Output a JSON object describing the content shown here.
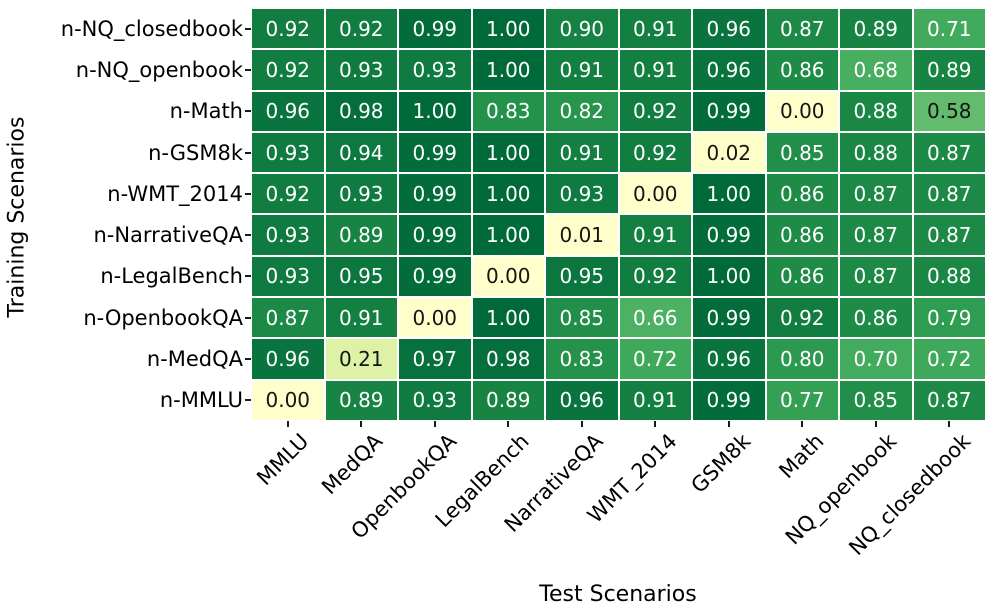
{
  "chart_data": {
    "type": "heatmap",
    "xlabel": "Test Scenarios",
    "ylabel": "Training Scenarios",
    "x_categories": [
      "MMLU",
      "MedQA",
      "OpenbookQA",
      "LegalBench",
      "NarrativeQA",
      "WMT_2014",
      "GSM8k",
      "Math",
      "NQ_openbook",
      "NQ_closedbook"
    ],
    "y_categories": [
      "n-NQ_closedbook",
      "n-NQ_openbook",
      "n-Math",
      "n-GSM8k",
      "n-WMT_2014",
      "n-NarrativeQA",
      "n-LegalBench",
      "n-OpenbookQA",
      "n-MedQA",
      "n-MMLU"
    ],
    "matrix": [
      [
        0.92,
        0.92,
        0.99,
        1.0,
        0.9,
        0.91,
        0.96,
        0.87,
        0.89,
        0.71
      ],
      [
        0.92,
        0.93,
        0.93,
        1.0,
        0.91,
        0.91,
        0.96,
        0.86,
        0.68,
        0.89
      ],
      [
        0.96,
        0.98,
        1.0,
        0.83,
        0.82,
        0.92,
        0.99,
        0.0,
        0.88,
        0.58
      ],
      [
        0.93,
        0.94,
        0.99,
        1.0,
        0.91,
        0.92,
        0.02,
        0.85,
        0.88,
        0.87
      ],
      [
        0.92,
        0.93,
        0.99,
        1.0,
        0.93,
        0.0,
        1.0,
        0.86,
        0.87,
        0.87
      ],
      [
        0.93,
        0.89,
        0.99,
        1.0,
        0.01,
        0.91,
        0.99,
        0.86,
        0.87,
        0.87
      ],
      [
        0.93,
        0.95,
        0.99,
        0.0,
        0.95,
        0.92,
        1.0,
        0.86,
        0.87,
        0.88
      ],
      [
        0.87,
        0.91,
        0.0,
        1.0,
        0.85,
        0.66,
        0.99,
        0.92,
        0.86,
        0.79
      ],
      [
        0.96,
        0.21,
        0.97,
        0.98,
        0.83,
        0.72,
        0.96,
        0.8,
        0.7,
        0.72
      ],
      [
        0.0,
        0.89,
        0.93,
        0.89,
        0.96,
        0.91,
        0.99,
        0.77,
        0.85,
        0.87
      ]
    ],
    "value_format_decimals": 2,
    "vmin": 0,
    "vmax": 1,
    "grid_on": false,
    "legend": "none",
    "colormap": {
      "name": "YlGn",
      "stops": [
        {
          "pos": 0.0,
          "color": "#ffffcc"
        },
        {
          "pos": 0.125,
          "color": "#f2fab4"
        },
        {
          "pos": 0.25,
          "color": "#d5ee9f"
        },
        {
          "pos": 0.375,
          "color": "#a9db85"
        },
        {
          "pos": 0.5,
          "color": "#7cc87a"
        },
        {
          "pos": 0.625,
          "color": "#55b567"
        },
        {
          "pos": 0.75,
          "color": "#37a557"
        },
        {
          "pos": 0.875,
          "color": "#1b8845"
        },
        {
          "pos": 1.0,
          "color": "#006a3a"
        }
      ]
    },
    "annotation_light_text_color": "#ffffff",
    "annotation_dark_text_color": "#151515",
    "light_text_threshold": 0.6,
    "gridline_color": "#ffffff",
    "tick_color": "#1a1a1a",
    "label_color": "#000000"
  }
}
